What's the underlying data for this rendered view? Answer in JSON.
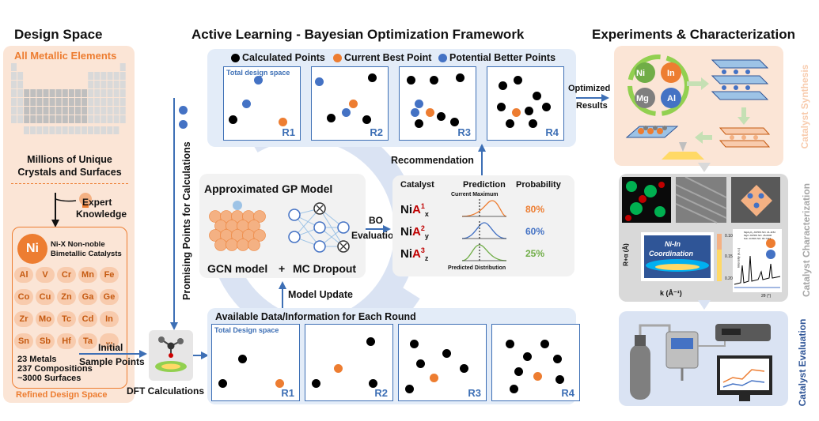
{
  "sections": {
    "design_space": "Design Space",
    "framework": "Active Learning - Bayesian Optimization Framework",
    "experiments": "Experiments & Characterization"
  },
  "design_space": {
    "all_elements": "All Metallic Elements",
    "millions_line1": "Millions of Unique",
    "millions_line2": "Crystals and Surfaces",
    "expert_line1": "Expert",
    "expert_line2": "Knowledge",
    "ni_symbol": "Ni",
    "ni_desc_line1": "Ni-X Non-noble",
    "ni_desc_line2": "Bimetallic Catalysts",
    "elements": [
      "Al",
      "V",
      "Cr",
      "Mn",
      "Fe",
      "Co",
      "Cu",
      "Zn",
      "Ga",
      "Ge",
      "Zr",
      "Mo",
      "Tc",
      "Cd",
      "In",
      "Sn",
      "Sb",
      "Hf",
      "Ta",
      "..."
    ],
    "stat_metals": "23 Metals",
    "stat_compositions": "237 Compositions",
    "stat_surfaces": "~3000 Surfaces",
    "refined": "Refined Design Space"
  },
  "legend": {
    "calculated": "Calculated Points",
    "current_best": "Current Best Point",
    "potential": "Potential Better Points"
  },
  "top_rounds": {
    "total_label": "Total design space",
    "rounds": [
      "R1",
      "R2",
      "R3",
      "R4"
    ]
  },
  "bottom_rounds": {
    "title": "Available Data/Information for Each Round",
    "total_label": "Total Design space",
    "rounds": [
      "R1",
      "R2",
      "R3",
      "R4"
    ]
  },
  "flow": {
    "optimized_line1": "Optimized",
    "optimized_line2": "Results",
    "recommendation": "Recommendation",
    "promising": "Promising Points for Calculations",
    "initial_line1": "Initial",
    "initial_line2": "Sample Points",
    "dft": "DFT Calculations",
    "model_update": "Model Update",
    "bo_line1": "BO",
    "bo_line2": "Evaluation"
  },
  "gp_model": {
    "title": "Approximated  GP Model",
    "gcn": "GCN model",
    "plus": "+",
    "mc": "MC Dropout"
  },
  "prediction_table": {
    "headers": [
      "Catalyst",
      "Prediction",
      "Probability"
    ],
    "current_max": "Current Maximum",
    "predicted_dist": "Predicted Distribution",
    "rows": [
      {
        "base": "Ni",
        "sup_el": "A",
        "sup_num": "1",
        "sub": "x",
        "prob": "80%",
        "color": "#ed7d31"
      },
      {
        "base": "Ni",
        "sup_el": "A",
        "sup_num": "2",
        "sub": "y",
        "prob": "60%",
        "color": "#4472c4"
      },
      {
        "base": "Ni",
        "sup_el": "A",
        "sup_num": "3",
        "sub": "z",
        "prob": "25%",
        "color": "#70ad47"
      }
    ]
  },
  "synthesis": {
    "ring": [
      "Ni",
      "In",
      "Mg",
      "Al"
    ],
    "side_label": "Catalyst Synthesis"
  },
  "characterization": {
    "xafs_line1": "Ni-In",
    "xafs_line2": "Coordination",
    "ylabel": "R+α (Å)",
    "xlabel": "k (Å⁻¹)",
    "cbar_top": "0.10",
    "cbar_mid": "0.15",
    "cbar_bot": "0.20",
    "xrd_legend": [
      "MgAl₂O₄ JCPDS NO. 21-1152",
      "MgO JCPDS NO. 45-0946",
      "NiIn JCPDS NO. 65-7423"
    ],
    "xrd_xlabel": "2θ (°)",
    "xrd_ylabel": "Intensity (a.u.)",
    "side_label": "Catalyst Characterization"
  },
  "evaluation": {
    "side_label": "Catalyst Evaluation"
  },
  "colors": {
    "orange": "#ed7d31",
    "blue": "#4472c4",
    "green": "#70ad47",
    "panel_blue": "#e3ecf8",
    "panel_peach": "#fbe5d6"
  }
}
